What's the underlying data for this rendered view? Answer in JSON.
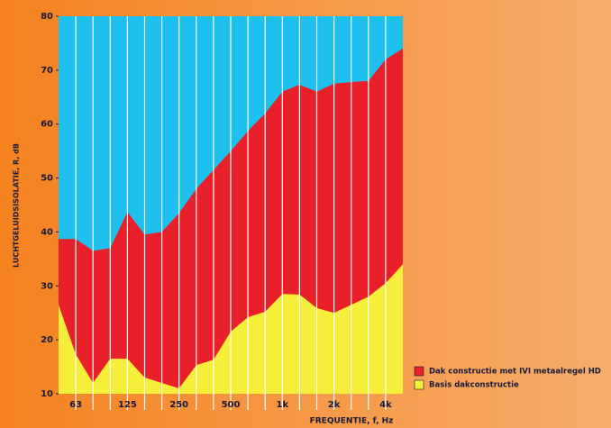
{
  "chart_data": {
    "type": "area",
    "categories": [
      null,
      "63",
      null,
      null,
      "125",
      null,
      null,
      "250",
      null,
      null,
      "500",
      null,
      null,
      "1k",
      null,
      null,
      "2k",
      null,
      null,
      "4k",
      null
    ],
    "series": [
      {
        "name": "Dak constructie met IVI metaalregel HD",
        "color": "#e8202a",
        "values": [
          38.7,
          38.7,
          36.5,
          37,
          43.7,
          39.5,
          40,
          43.5,
          48,
          51.5,
          55,
          58.7,
          62,
          66,
          67.3,
          66,
          67.5,
          67.8,
          68,
          72,
          74
        ]
      },
      {
        "name": "Basis dakconstructie",
        "color": "#f5ee3a",
        "values": [
          26.5,
          17.3,
          12,
          16.5,
          16.5,
          13,
          12,
          11,
          15.3,
          16.3,
          21.5,
          24.2,
          25.2,
          28.5,
          28.4,
          25.9,
          25,
          26.5,
          28,
          30.5,
          34
        ]
      }
    ],
    "ylim": [
      10,
      80
    ],
    "yticks": [
      10,
      20,
      30,
      40,
      50,
      60,
      70,
      80
    ],
    "ylabel": "LUCHTGELUIDSISOLATIE, R, dB",
    "xlabel": "FREQUENTIE, f, Hz",
    "background": "#1ec0ee",
    "grid": true
  }
}
